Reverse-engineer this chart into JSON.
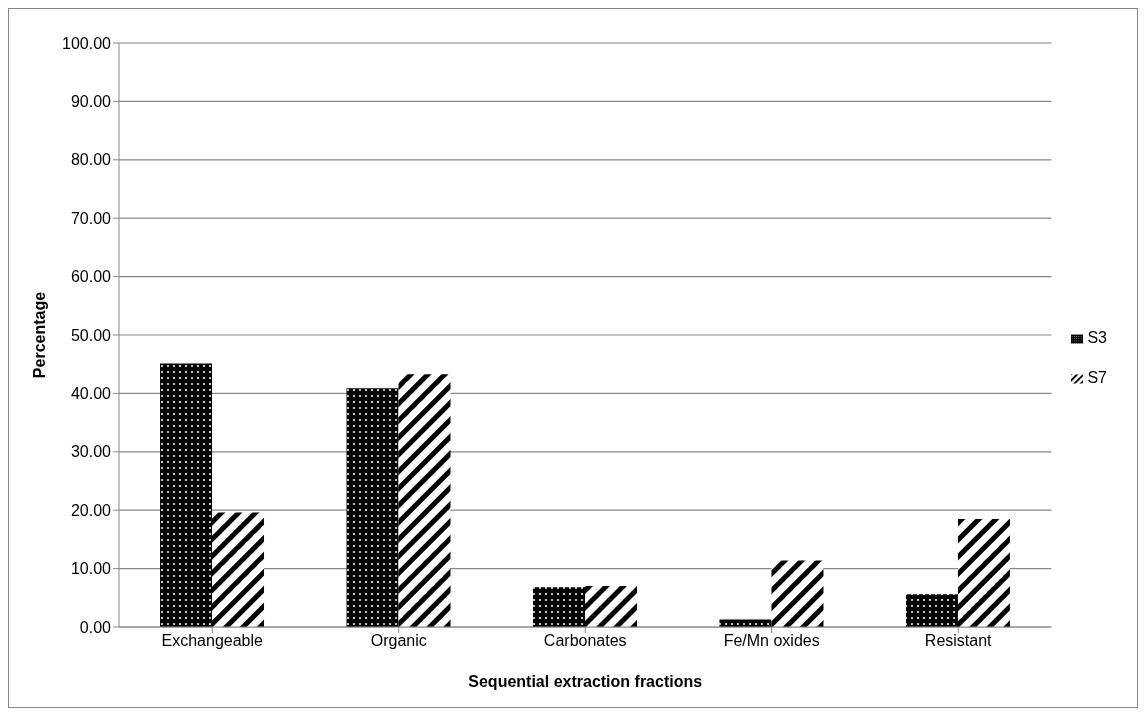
{
  "chart_data": {
    "type": "bar",
    "xlabel": "Sequential extraction fractions",
    "ylabel": "Percentage",
    "categories": [
      "Exchangeable",
      "Organic",
      "Carbonates",
      "Fe/Mn oxides",
      "Resistant"
    ],
    "series": [
      {
        "name": "S3",
        "color": "#000000",
        "values": [
          45.1,
          40.9,
          6.8,
          1.3,
          5.6
        ]
      },
      {
        "name": "S7",
        "color": "#000000",
        "values": [
          19.6,
          43.3,
          7.0,
          11.4,
          18.5
        ]
      }
    ],
    "ylim": [
      0,
      100
    ],
    "yticks": [
      {
        "value": 0,
        "label": "0.00"
      },
      {
        "value": 10,
        "label": "10.00"
      },
      {
        "value": 20,
        "label": "20.00"
      },
      {
        "value": 30,
        "label": "30.00"
      },
      {
        "value": 40,
        "label": "40.00"
      },
      {
        "value": 50,
        "label": "50.00"
      },
      {
        "value": 60,
        "label": "60.00"
      },
      {
        "value": 70,
        "label": "70.00"
      },
      {
        "value": 80,
        "label": "80.00"
      },
      {
        "value": 90,
        "label": "90.00"
      },
      {
        "value": 100,
        "label": "100.00"
      }
    ],
    "grid": "y",
    "legend": "right"
  }
}
